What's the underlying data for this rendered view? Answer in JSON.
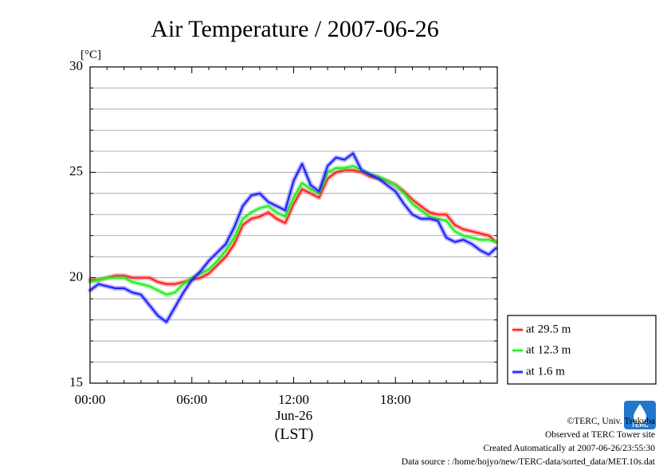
{
  "chart_data": {
    "type": "line",
    "title": "Air Temperature / 2007-06-26",
    "y_unit": "[°C]",
    "ylim": [
      15,
      30
    ],
    "y_ticks": [
      15,
      20,
      25,
      30
    ],
    "xlim": [
      "00:00",
      "24:00"
    ],
    "x_ticks": [
      "00:00",
      "06:00",
      "12:00",
      "18:00"
    ],
    "x_date_label": "Jun-26",
    "x_zone_label": "(LST)",
    "grid": true,
    "legend": "right-bottom",
    "series": [
      {
        "name": "at 29.5 m",
        "color": "#ff2222",
        "x": [
          "00:00",
          "00:30",
          "01:00",
          "01:30",
          "02:00",
          "02:30",
          "03:00",
          "03:30",
          "04:00",
          "04:30",
          "05:00",
          "05:30",
          "06:00",
          "06:30",
          "07:00",
          "07:30",
          "08:00",
          "08:30",
          "09:00",
          "09:30",
          "10:00",
          "10:30",
          "11:00",
          "11:30",
          "12:00",
          "12:30",
          "13:00",
          "13:30",
          "14:00",
          "14:30",
          "15:00",
          "15:30",
          "16:00",
          "16:30",
          "17:00",
          "17:30",
          "18:00",
          "18:30",
          "19:00",
          "19:30",
          "20:00",
          "20:30",
          "21:00",
          "21:30",
          "22:00",
          "22:30",
          "23:00",
          "23:30",
          "23:55"
        ],
        "values": [
          19.9,
          19.9,
          20.0,
          20.1,
          20.1,
          20.0,
          20.0,
          20.0,
          19.8,
          19.7,
          19.7,
          19.8,
          19.9,
          20.0,
          20.2,
          20.6,
          21.0,
          21.6,
          22.5,
          22.8,
          22.9,
          23.1,
          22.8,
          22.6,
          23.5,
          24.2,
          24.0,
          23.8,
          24.7,
          25.0,
          25.1,
          25.1,
          25.0,
          24.8,
          24.7,
          24.6,
          24.4,
          24.1,
          23.7,
          23.4,
          23.1,
          23.0,
          23.0,
          22.5,
          22.3,
          22.2,
          22.1,
          22.0,
          21.7
        ]
      },
      {
        "name": "at 12.3 m",
        "color": "#22ee22",
        "x": [
          "00:00",
          "00:30",
          "01:00",
          "01:30",
          "02:00",
          "02:30",
          "03:00",
          "03:30",
          "04:00",
          "04:30",
          "05:00",
          "05:30",
          "06:00",
          "06:30",
          "07:00",
          "07:30",
          "08:00",
          "08:30",
          "09:00",
          "09:30",
          "10:00",
          "10:30",
          "11:00",
          "11:30",
          "12:00",
          "12:30",
          "13:00",
          "13:30",
          "14:00",
          "14:30",
          "15:00",
          "15:30",
          "16:00",
          "16:30",
          "17:00",
          "17:30",
          "18:00",
          "18:30",
          "19:00",
          "19:30",
          "20:00",
          "20:30",
          "21:00",
          "21:30",
          "22:00",
          "22:30",
          "23:00",
          "23:30",
          "23:55"
        ],
        "values": [
          19.8,
          19.9,
          20.0,
          20.0,
          20.0,
          19.8,
          19.7,
          19.6,
          19.4,
          19.2,
          19.3,
          19.7,
          20.0,
          20.2,
          20.4,
          20.8,
          21.3,
          21.9,
          22.8,
          23.1,
          23.3,
          23.4,
          23.1,
          22.9,
          23.8,
          24.5,
          24.2,
          24.0,
          25.0,
          25.2,
          25.2,
          25.3,
          25.1,
          24.9,
          24.8,
          24.6,
          24.4,
          24.0,
          23.5,
          23.2,
          22.9,
          22.8,
          22.7,
          22.2,
          22.0,
          21.9,
          21.8,
          21.8,
          21.7
        ]
      },
      {
        "name": "at 1.6 m",
        "color": "#2222ff",
        "x": [
          "00:00",
          "00:30",
          "01:00",
          "01:30",
          "02:00",
          "02:30",
          "03:00",
          "03:30",
          "04:00",
          "04:30",
          "05:00",
          "05:30",
          "06:00",
          "06:30",
          "07:00",
          "07:30",
          "08:00",
          "08:30",
          "09:00",
          "09:30",
          "10:00",
          "10:30",
          "11:00",
          "11:30",
          "12:00",
          "12:30",
          "13:00",
          "13:30",
          "14:00",
          "14:30",
          "15:00",
          "15:30",
          "16:00",
          "16:30",
          "17:00",
          "17:30",
          "18:00",
          "18:30",
          "19:00",
          "19:30",
          "20:00",
          "20:30",
          "21:00",
          "21:30",
          "22:00",
          "22:30",
          "23:00",
          "23:30",
          "23:55"
        ],
        "values": [
          19.4,
          19.7,
          19.6,
          19.5,
          19.5,
          19.3,
          19.2,
          18.7,
          18.2,
          17.9,
          18.6,
          19.3,
          19.9,
          20.3,
          20.8,
          21.2,
          21.6,
          22.4,
          23.4,
          23.9,
          24.0,
          23.6,
          23.4,
          23.2,
          24.6,
          25.4,
          24.4,
          24.1,
          25.3,
          25.7,
          25.6,
          25.9,
          25.1,
          24.9,
          24.7,
          24.4,
          24.1,
          23.5,
          23.0,
          22.8,
          22.8,
          22.7,
          21.9,
          21.7,
          21.8,
          21.6,
          21.3,
          21.1,
          21.4
        ]
      }
    ]
  },
  "footer": {
    "copyright": "©TERC, Univ. Tsukuba",
    "site": "Observed at TERC Tower site",
    "created": "Created Automatically at 2007-06-26/23:55:30",
    "source": "Data source : /home/hojyo/new/TERC-data/sorted_data/MET.10s.dat"
  },
  "logo": {
    "text": "TERC",
    "color": "#2277cc"
  }
}
